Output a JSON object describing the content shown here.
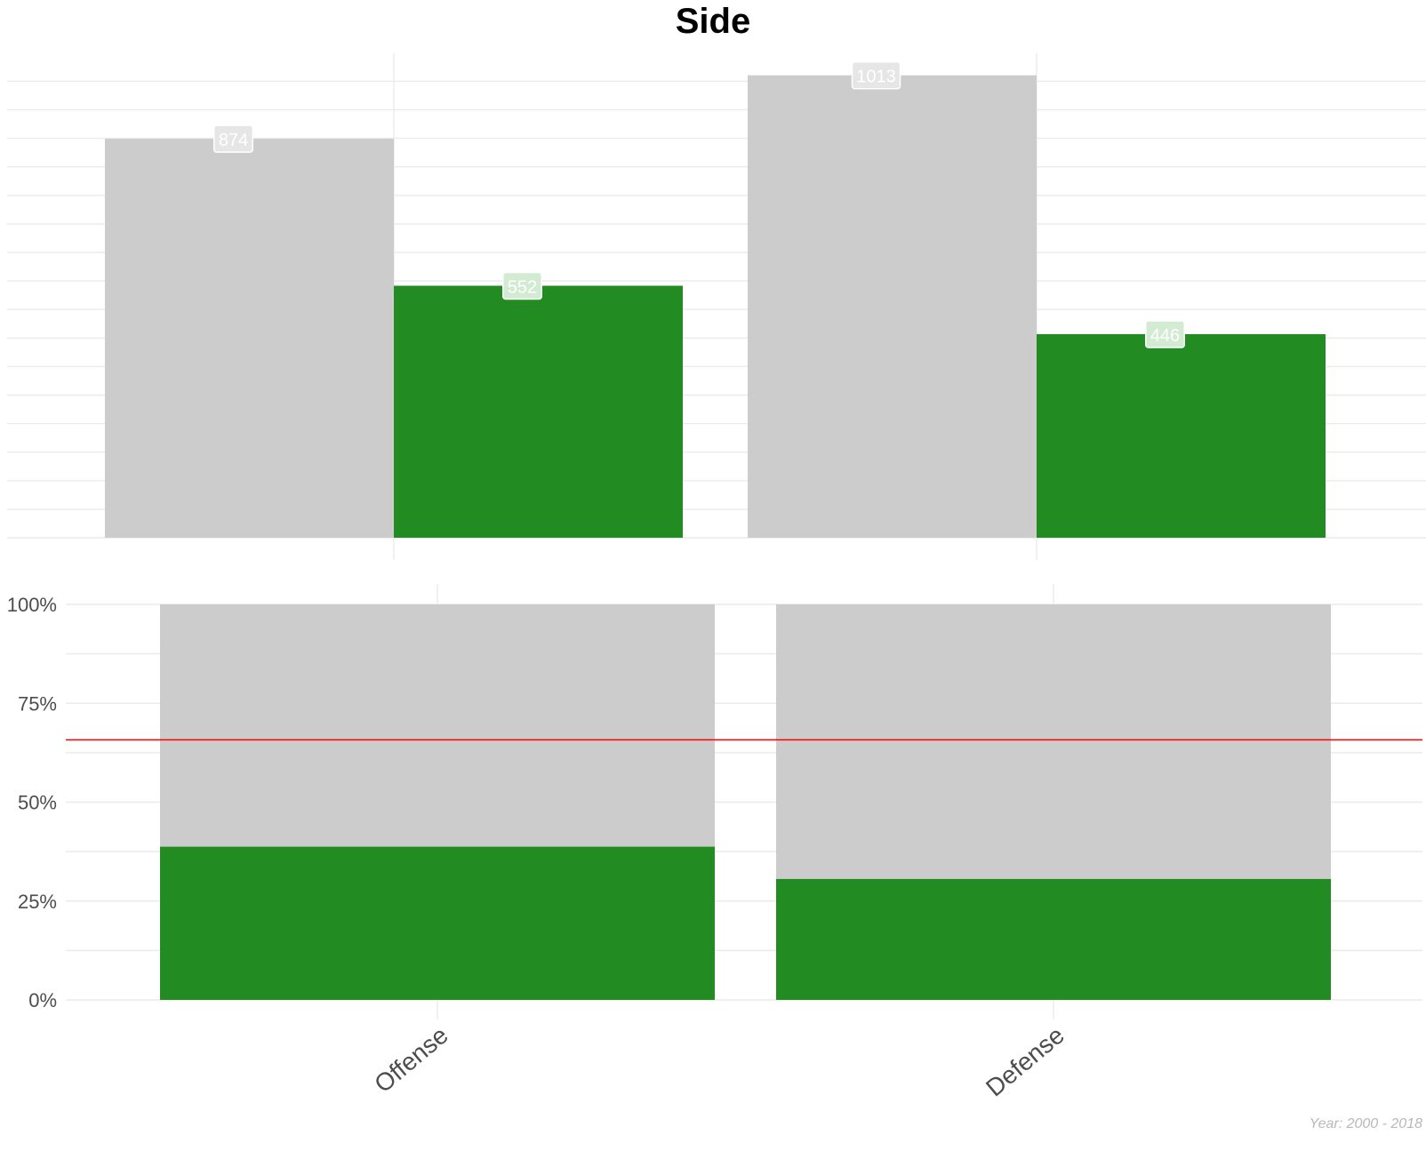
{
  "title": "Side",
  "caption": "Year: 2000 - 2018",
  "colors": {
    "base": "#cccccc",
    "highlight": "#228b22",
    "reference_line": "#ff0000",
    "grid": "#ebebeb",
    "tick_text": "#4d4d4d"
  },
  "chart_data": [
    {
      "type": "bar",
      "title": "Side",
      "categories": [
        "Offense",
        "Defense"
      ],
      "series": [
        {
          "values": [
            874,
            1013
          ],
          "color": "#cccccc"
        },
        {
          "values": [
            552,
            446
          ],
          "color": "#228b22"
        }
      ],
      "data_labels": [
        "874",
        "552",
        "1013",
        "446"
      ],
      "ylim": [
        0,
        1030
      ],
      "y_ticks_shown": false,
      "grid": true,
      "legend": "none"
    },
    {
      "type": "bar",
      "stacked": true,
      "categories": [
        "Offense",
        "Defense"
      ],
      "series": [
        {
          "values": [
            0.6126,
            0.6943
          ],
          "color": "#cccccc"
        },
        {
          "values": [
            0.3874,
            0.3057
          ],
          "color": "#228b22"
        }
      ],
      "y_ticks": [
        "0%",
        "25%",
        "50%",
        "75%",
        "100%"
      ],
      "ylim": [
        0,
        1
      ],
      "reference_line": 0.6576,
      "grid": true,
      "legend": "none"
    }
  ]
}
